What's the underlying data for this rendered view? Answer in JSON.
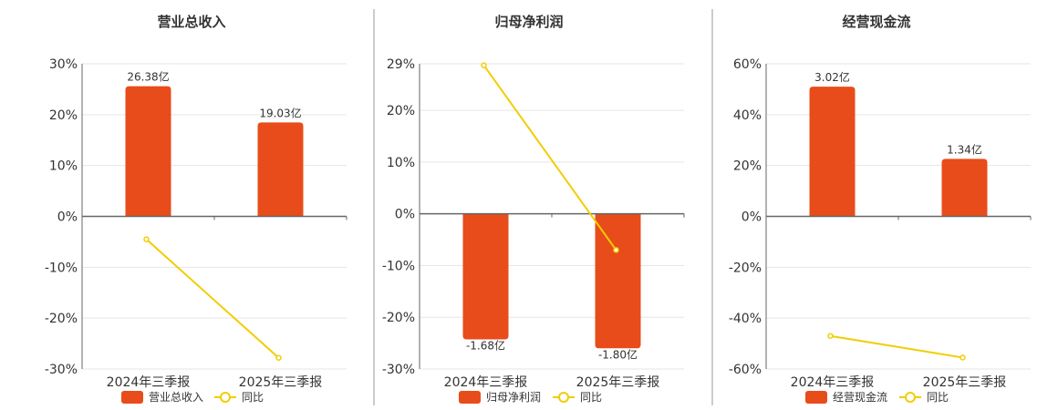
{
  "colors": {
    "bar": "#E84C1B",
    "line": "#F2CD00",
    "grid": "#E6E6E6",
    "axis": "#666666",
    "divider": "#999999"
  },
  "chart_data": [
    {
      "type": "bar",
      "title": "营业总收入",
      "categories": [
        "2024年三季报",
        "2025年三季报"
      ],
      "y_ticks": [
        30,
        20,
        10,
        0,
        -10,
        -20,
        -30
      ],
      "y_tick_labels": [
        "30%",
        "20%",
        "10%",
        "0%",
        "-10%",
        "-20%",
        "-30%"
      ],
      "ylim": [
        -30,
        30
      ],
      "series": [
        {
          "name": "营业总收入",
          "kind": "bar",
          "values": [
            26.38,
            19.03
          ],
          "labels": [
            "26.38亿",
            "19.03亿"
          ]
        },
        {
          "name": "同比",
          "kind": "line",
          "values": [
            -4.5,
            -27.8
          ]
        }
      ],
      "bar_scale": [
        0,
        26.38,
        25.6
      ],
      "legend": "bottom"
    },
    {
      "type": "bar",
      "title": "归母净利润",
      "categories": [
        "2024年三季报",
        "2025年三季报"
      ],
      "y_ticks": [
        29,
        20,
        10,
        0,
        -10,
        -20,
        -30
      ],
      "y_tick_labels": [
        "29%",
        "20%",
        "10%",
        "0%",
        "-10%",
        "-20%",
        "-30%"
      ],
      "ylim": [
        -30,
        29
      ],
      "series": [
        {
          "name": "归母净利润",
          "kind": "bar",
          "values": [
            -1.68,
            -1.8
          ],
          "labels": [
            "-1.68亿",
            "-1.80亿"
          ]
        },
        {
          "name": "同比",
          "kind": "line",
          "values": [
            28.7,
            -7.0
          ]
        }
      ],
      "bar_scale": [
        0,
        -1.8,
        -26.0
      ],
      "legend": "bottom"
    },
    {
      "type": "bar",
      "title": "经营现金流",
      "categories": [
        "2024年三季报",
        "2025年三季报"
      ],
      "y_ticks": [
        60,
        40,
        20,
        0,
        -20,
        -40,
        -60
      ],
      "y_tick_labels": [
        "60%",
        "40%",
        "20%",
        "0%",
        "-20%",
        "-40%",
        "-60%"
      ],
      "ylim": [
        -60,
        60
      ],
      "series": [
        {
          "name": "经营现金流",
          "kind": "bar",
          "values": [
            3.02,
            1.34
          ],
          "labels": [
            "3.02亿",
            "1.34亿"
          ]
        },
        {
          "name": "同比",
          "kind": "line",
          "values": [
            -47.0,
            -55.5
          ]
        }
      ],
      "bar_scale": [
        0,
        3.02,
        51.0
      ],
      "legend": "bottom"
    }
  ]
}
